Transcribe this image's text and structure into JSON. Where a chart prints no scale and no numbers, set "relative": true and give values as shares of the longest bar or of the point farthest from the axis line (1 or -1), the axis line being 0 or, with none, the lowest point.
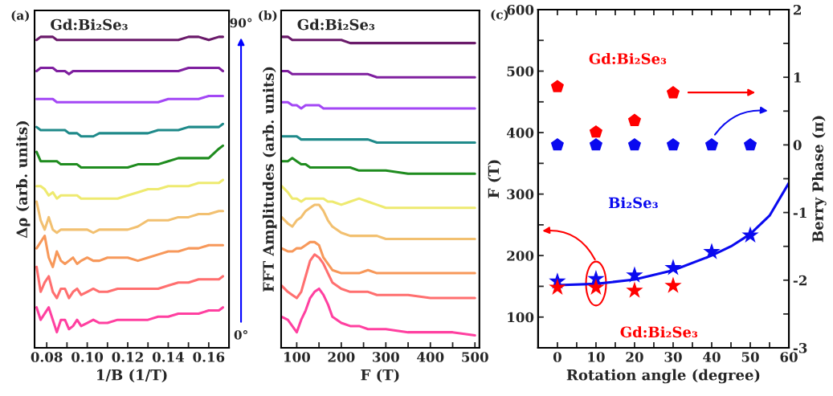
{
  "chart_data": [
    {
      "type": "line",
      "title": "(a)",
      "xlabel": "1/B (1/T)",
      "ylabel": "Δρ (arb. units)",
      "relative": true,
      "annotations": [
        "Gd:Bi₂Se₃",
        "90°",
        "0°"
      ],
      "xlim": [
        0.074,
        0.17
      ],
      "xticks": [
        0.08,
        {
          "value": 0.09,
          "label": null
        },
        {
          "value": 0.1,
          "label": "0.10"
        },
        {
          "value": 0.11,
          "label": null
        },
        0.12,
        {
          "value": 0.13,
          "label": null
        },
        0.14,
        {
          "value": 0.15,
          "label": null
        },
        0.16
      ],
      "x": [
        0.075,
        0.077,
        0.079,
        0.081,
        0.083,
        0.085,
        0.087,
        0.089,
        0.091,
        0.093,
        0.095,
        0.097,
        0.1,
        0.103,
        0.106,
        0.11,
        0.115,
        0.12,
        0.125,
        0.13,
        0.135,
        0.14,
        0.145,
        0.15,
        0.155,
        0.16,
        0.165,
        0.167
      ],
      "series": [
        {
          "color": "#ff40a0",
          "values": [
            0.13,
            0.09,
            0.11,
            0.13,
            0.09,
            0.05,
            0.09,
            0.09,
            0.06,
            0.07,
            0.09,
            0.07,
            0.08,
            0.09,
            0.08,
            0.08,
            0.09,
            0.09,
            0.09,
            0.09,
            0.1,
            0.1,
            0.11,
            0.11,
            0.11,
            0.12,
            0.12,
            0.13
          ]
        },
        {
          "color": "#ff6f6f",
          "values": [
            0.26,
            0.18,
            0.21,
            0.23,
            0.18,
            0.16,
            0.19,
            0.19,
            0.16,
            0.18,
            0.19,
            0.17,
            0.18,
            0.19,
            0.18,
            0.18,
            0.19,
            0.19,
            0.19,
            0.19,
            0.19,
            0.2,
            0.21,
            0.21,
            0.22,
            0.22,
            0.22,
            0.23
          ]
        },
        {
          "color": "#f7985a",
          "values": [
            0.32,
            0.34,
            0.36,
            0.29,
            0.26,
            0.31,
            0.28,
            0.27,
            0.28,
            0.29,
            0.27,
            0.28,
            0.29,
            0.28,
            0.28,
            0.29,
            0.29,
            0.29,
            0.28,
            0.29,
            0.3,
            0.31,
            0.31,
            0.32,
            0.32,
            0.33,
            0.33,
            0.33
          ]
        },
        {
          "color": "#f2c070",
          "values": [
            0.47,
            0.41,
            0.38,
            0.42,
            0.38,
            0.37,
            0.38,
            0.38,
            0.38,
            0.38,
            0.38,
            0.38,
            0.38,
            0.37,
            0.38,
            0.38,
            0.38,
            0.38,
            0.39,
            0.41,
            0.41,
            0.41,
            0.42,
            0.42,
            0.43,
            0.43,
            0.44,
            0.44
          ]
        },
        {
          "color": "#eeea70",
          "values": [
            0.52,
            0.52,
            0.51,
            0.49,
            0.5,
            0.48,
            0.49,
            0.49,
            0.49,
            0.49,
            0.49,
            0.48,
            0.48,
            0.48,
            0.48,
            0.48,
            0.48,
            0.49,
            0.5,
            0.51,
            0.51,
            0.52,
            0.52,
            0.52,
            0.53,
            0.53,
            0.53,
            0.54
          ]
        },
        {
          "color": "#1f8c1f",
          "values": [
            0.63,
            0.6,
            0.6,
            0.6,
            0.6,
            0.6,
            0.59,
            0.59,
            0.59,
            0.59,
            0.59,
            0.58,
            0.58,
            0.58,
            0.58,
            0.58,
            0.58,
            0.58,
            0.59,
            0.59,
            0.59,
            0.6,
            0.61,
            0.61,
            0.61,
            0.61,
            0.64,
            0.65
          ]
        },
        {
          "color": "#1f8a8a",
          "values": [
            0.71,
            0.7,
            0.7,
            0.7,
            0.7,
            0.7,
            0.7,
            0.7,
            0.69,
            0.69,
            0.69,
            0.68,
            0.68,
            0.68,
            0.69,
            0.69,
            0.69,
            0.69,
            0.69,
            0.69,
            0.7,
            0.7,
            0.7,
            0.71,
            0.71,
            0.71,
            0.71,
            0.72
          ]
        },
        {
          "color": "#a347f5",
          "values": [
            0.8,
            0.8,
            0.8,
            0.8,
            0.8,
            0.79,
            0.79,
            0.79,
            0.79,
            0.79,
            0.79,
            0.79,
            0.79,
            0.79,
            0.79,
            0.79,
            0.79,
            0.79,
            0.79,
            0.79,
            0.79,
            0.8,
            0.8,
            0.8,
            0.8,
            0.81,
            0.81,
            0.81
          ]
        },
        {
          "color": "#7f1f9f",
          "values": [
            0.89,
            0.9,
            0.9,
            0.9,
            0.9,
            0.89,
            0.89,
            0.89,
            0.88,
            0.89,
            0.89,
            0.89,
            0.89,
            0.89,
            0.89,
            0.89,
            0.89,
            0.89,
            0.89,
            0.89,
            0.89,
            0.89,
            0.89,
            0.9,
            0.9,
            0.9,
            0.9,
            0.89
          ]
        },
        {
          "color": "#6a1a6a",
          "values": [
            0.99,
            1.0,
            1.0,
            1.0,
            1.0,
            0.99,
            0.99,
            0.99,
            0.99,
            0.99,
            0.99,
            0.99,
            0.99,
            0.99,
            0.99,
            0.99,
            0.99,
            0.99,
            0.99,
            0.99,
            0.99,
            0.99,
            0.99,
            1.0,
            1.0,
            0.99,
            1.0,
            1.0
          ]
        }
      ]
    },
    {
      "type": "line",
      "title": "(b)",
      "xlabel": "F (T)",
      "ylabel": "FFT Amplitudes (arb. units)",
      "relative": true,
      "annotations": [
        "Gd:Bi₂Se₃"
      ],
      "xlim": [
        65,
        510
      ],
      "xticks": [
        100,
        {
          "value": 150,
          "label": null
        },
        200,
        {
          "value": 250,
          "label": null
        },
        300,
        {
          "value": 350,
          "label": null
        },
        400,
        {
          "value": 450,
          "label": null
        },
        500
      ],
      "x": [
        66,
        80,
        90,
        100,
        110,
        120,
        130,
        140,
        150,
        160,
        170,
        180,
        200,
        220,
        240,
        260,
        280,
        300,
        350,
        400,
        450,
        500
      ],
      "series": [
        {
          "color": "#ff40a0",
          "values": [
            0.1,
            0.09,
            0.07,
            0.05,
            0.09,
            0.12,
            0.16,
            0.18,
            0.19,
            0.17,
            0.14,
            0.1,
            0.08,
            0.07,
            0.07,
            0.06,
            0.06,
            0.06,
            0.05,
            0.05,
            0.05,
            0.04
          ]
        },
        {
          "color": "#ff6f6f",
          "values": [
            0.2,
            0.18,
            0.17,
            0.16,
            0.18,
            0.23,
            0.28,
            0.3,
            0.29,
            0.27,
            0.24,
            0.21,
            0.19,
            0.18,
            0.18,
            0.18,
            0.17,
            0.17,
            0.17,
            0.16,
            0.16,
            0.16
          ]
        },
        {
          "color": "#f7985a",
          "values": [
            0.32,
            0.31,
            0.31,
            0.32,
            0.32,
            0.33,
            0.34,
            0.34,
            0.33,
            0.29,
            0.27,
            0.25,
            0.24,
            0.24,
            0.24,
            0.25,
            0.24,
            0.24,
            0.24,
            0.24,
            0.24,
            0.24
          ]
        },
        {
          "color": "#f2c070",
          "values": [
            0.42,
            0.4,
            0.39,
            0.41,
            0.42,
            0.44,
            0.45,
            0.46,
            0.46,
            0.44,
            0.41,
            0.39,
            0.37,
            0.36,
            0.36,
            0.36,
            0.36,
            0.35,
            0.35,
            0.35,
            0.35,
            0.35
          ]
        },
        {
          "color": "#eeea70",
          "values": [
            0.52,
            0.5,
            0.48,
            0.48,
            0.47,
            0.48,
            0.48,
            0.48,
            0.48,
            0.48,
            0.47,
            0.47,
            0.46,
            0.47,
            0.48,
            0.47,
            0.46,
            0.45,
            0.45,
            0.45,
            0.45,
            0.45
          ]
        },
        {
          "color": "#1f8c1f",
          "values": [
            0.6,
            0.6,
            0.61,
            0.6,
            0.59,
            0.59,
            0.58,
            0.58,
            0.58,
            0.58,
            0.58,
            0.58,
            0.58,
            0.58,
            0.57,
            0.57,
            0.57,
            0.57,
            0.56,
            0.56,
            0.56,
            0.56
          ]
        },
        {
          "color": "#1f8a8a",
          "values": [
            0.68,
            0.68,
            0.68,
            0.68,
            0.67,
            0.67,
            0.67,
            0.67,
            0.67,
            0.67,
            0.67,
            0.67,
            0.67,
            0.67,
            0.67,
            0.67,
            0.66,
            0.66,
            0.66,
            0.66,
            0.66,
            0.66
          ]
        },
        {
          "color": "#a347f5",
          "values": [
            0.79,
            0.79,
            0.78,
            0.78,
            0.77,
            0.78,
            0.78,
            0.78,
            0.78,
            0.77,
            0.77,
            0.77,
            0.77,
            0.77,
            0.77,
            0.77,
            0.77,
            0.77,
            0.77,
            0.77,
            0.77,
            0.77
          ]
        },
        {
          "color": "#7f1f9f",
          "values": [
            0.89,
            0.89,
            0.88,
            0.88,
            0.88,
            0.88,
            0.88,
            0.88,
            0.88,
            0.88,
            0.88,
            0.88,
            0.88,
            0.88,
            0.88,
            0.88,
            0.87,
            0.87,
            0.87,
            0.87,
            0.87,
            0.87
          ]
        },
        {
          "color": "#6a1a6a",
          "values": [
            1.0,
            1.0,
            0.99,
            0.99,
            0.99,
            0.99,
            0.99,
            0.99,
            0.99,
            0.99,
            0.99,
            0.99,
            0.99,
            0.98,
            0.98,
            0.98,
            0.98,
            0.98,
            0.98,
            0.98,
            0.98,
            0.98
          ]
        }
      ]
    },
    {
      "type": "scatter",
      "title": "(c)",
      "xlabel": "Rotation angle (degree)",
      "ylabel": "F (T)",
      "y2label": "Berry Phase (π)",
      "xlim": [
        -5,
        60
      ],
      "xticks": [
        0,
        {
          "value": 5,
          "label": null
        },
        10,
        {
          "value": 15,
          "label": null
        },
        20,
        {
          "value": 25,
          "label": null
        },
        30,
        {
          "value": 35,
          "label": null
        },
        40,
        {
          "value": 45,
          "label": null
        },
        50,
        {
          "value": 55,
          "label": null
        },
        60
      ],
      "ylim": [
        50,
        600
      ],
      "yticks": [
        100,
        {
          "value": 150,
          "label": null
        },
        200,
        {
          "value": 250,
          "label": null
        },
        300,
        {
          "value": 350,
          "label": null
        },
        400,
        {
          "value": 450,
          "label": null
        },
        500,
        {
          "value": 550,
          "label": null
        },
        600
      ],
      "y2lim": [
        -3,
        2
      ],
      "y2ticks": [
        -3,
        {
          "value": -2.5,
          "label": null
        },
        -2,
        {
          "value": -1.5,
          "label": null
        },
        -1,
        {
          "value": -0.5,
          "label": null
        },
        0,
        {
          "value": 0.5,
          "label": null
        },
        1,
        {
          "value": 1.5,
          "label": null
        },
        2
      ],
      "series": [
        {
          "type": "line",
          "color": "#0a0aef",
          "marker": "none",
          "line_style": "solid",
          "x": [
            0,
            10,
            20,
            30,
            40,
            45,
            50,
            55,
            60
          ],
          "values": [
            152,
            154,
            161,
            176,
            200,
            215,
            235,
            265,
            318
          ]
        },
        {
          "type": "scatter",
          "name": "Gd:Bi₂Se₃",
          "axis": "y2",
          "color": "#ff0000",
          "x": [
            0,
            10,
            20,
            30
          ],
          "values": [
            0.86,
            0.19,
            0.36,
            0.77
          ]
        },
        {
          "type": "scatter",
          "name": "Bi₂Se₃",
          "axis": "y2",
          "color": "#0a0aef",
          "x": [
            0,
            10,
            20,
            30,
            40,
            50
          ],
          "values": [
            0,
            0,
            0,
            0,
            0,
            0
          ]
        },
        {
          "type": "scatter",
          "color": "#0a0aef",
          "marker": "star",
          "x": [
            0,
            10,
            20,
            30,
            40,
            50
          ],
          "values": [
            158,
            162,
            168,
            180,
            206,
            233
          ]
        },
        {
          "type": "scatter",
          "name": "Gd:Bi₂Se₃",
          "color": "#ff0000",
          "marker": "star",
          "x": [
            0,
            10,
            20,
            30
          ],
          "values": [
            148,
            148,
            143,
            151
          ]
        }
      ]
    }
  ]
}
